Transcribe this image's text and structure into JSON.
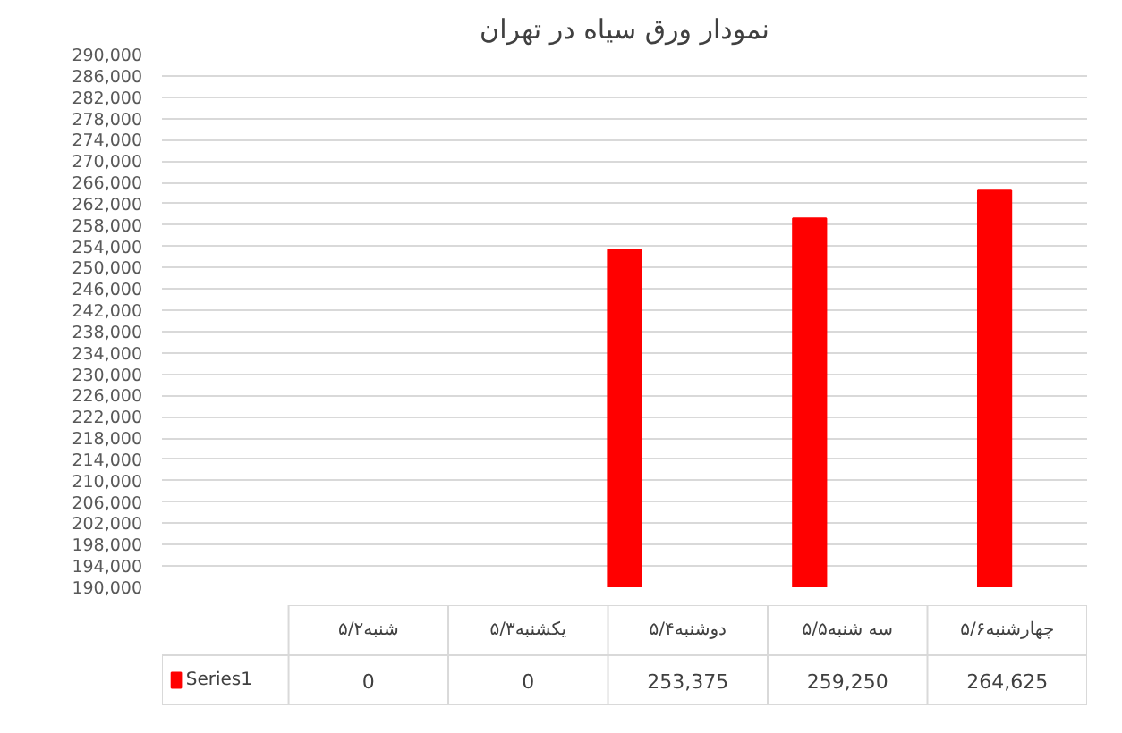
{
  "chart_data": {
    "type": "bar",
    "title": "نمودار ورق سیاه در تهران",
    "categories": [
      "شنبه۵/۲",
      "یکشنبه۵/۳",
      "دوشنبه۵/۴",
      "سه شنبه۵/۵",
      "چهارشنبه۵/۶"
    ],
    "series": [
      {
        "name": "Series1",
        "color": "#ff0000",
        "values": [
          null,
          null,
          253375,
          259250,
          264625
        ],
        "value_labels": [
          "0",
          "0",
          "253,375",
          "259,250",
          "264,625"
        ]
      }
    ],
    "ylim": [
      190000,
      290000
    ],
    "yticks": [
      {
        "value": 190000,
        "label": "190,000"
      },
      {
        "value": 194000,
        "label": "194,000"
      },
      {
        "value": 198000,
        "label": "198,000"
      },
      {
        "value": 202000,
        "label": "202,000"
      },
      {
        "value": 206000,
        "label": "206,000"
      },
      {
        "value": 210000,
        "label": "210,000"
      },
      {
        "value": 214000,
        "label": "214,000"
      },
      {
        "value": 218000,
        "label": "218,000"
      },
      {
        "value": 222000,
        "label": "222,000"
      },
      {
        "value": 226000,
        "label": "226,000"
      },
      {
        "value": 230000,
        "label": "230,000"
      },
      {
        "value": 234000,
        "label": "234,000"
      },
      {
        "value": 238000,
        "label": "238,000"
      },
      {
        "value": 242000,
        "label": "242,000"
      },
      {
        "value": 246000,
        "label": "246,000"
      },
      {
        "value": 250000,
        "label": "250,000"
      },
      {
        "value": 254000,
        "label": "254,000"
      },
      {
        "value": 258000,
        "label": "258,000"
      },
      {
        "value": 262000,
        "label": "262,000"
      },
      {
        "value": 266000,
        "label": "266,000"
      },
      {
        "value": 270000,
        "label": "270,000"
      },
      {
        "value": 274000,
        "label": "274,000"
      },
      {
        "value": 278000,
        "label": "278,000"
      },
      {
        "value": 282000,
        "label": "282,000"
      },
      {
        "value": 286000,
        "label": "286,000"
      },
      {
        "value": 290000,
        "label": "290,000"
      }
    ],
    "grid": "y",
    "legend": "bottom"
  }
}
